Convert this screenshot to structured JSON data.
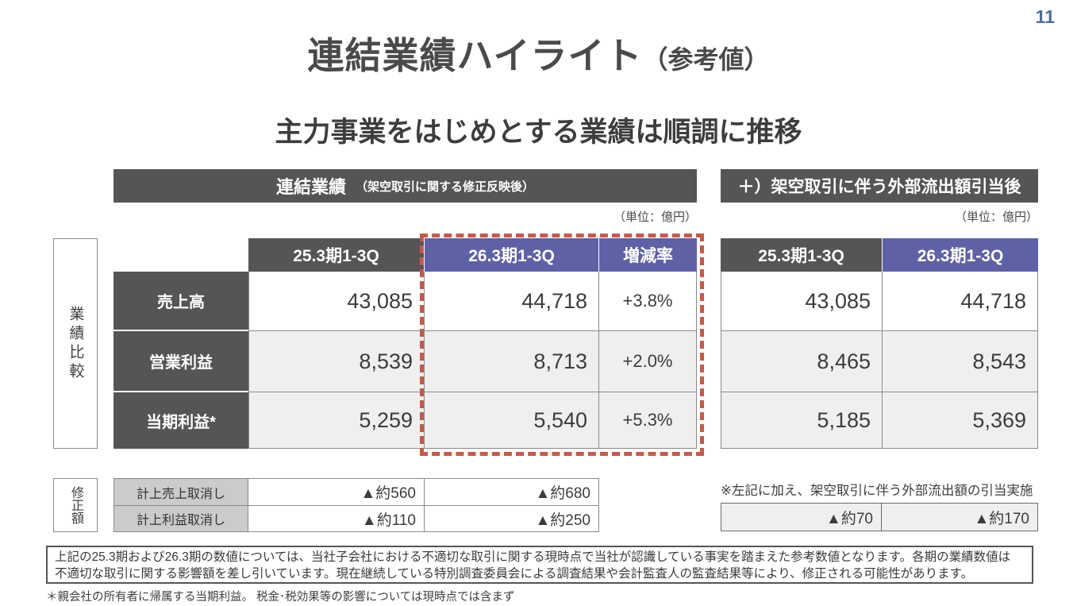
{
  "page": {
    "number": "11"
  },
  "title": {
    "main": "連結業績ハイライト",
    "sub": "（参考値）"
  },
  "subtitle": "主力事業をはじめとする業績は順調に推移",
  "left_panel": {
    "header": "連結業績",
    "header_note": "（架空取引に関する修正反映後）",
    "unit": "（単位：億円）",
    "side_label": "業績比較",
    "columns": [
      "25.3期1-3Q",
      "26.3期1-3Q",
      "増減率"
    ],
    "rows": [
      {
        "label": "売上高",
        "prev": "43,085",
        "curr": "44,718",
        "change": "+3.8%"
      },
      {
        "label": "営業利益",
        "prev": "8,539",
        "curr": "8,713",
        "change": "+2.0%"
      },
      {
        "label": "当期利益*",
        "prev": "5,259",
        "curr": "5,540",
        "change": "+5.3%"
      }
    ]
  },
  "right_panel": {
    "header": "＋）架空取引に伴う外部流出額引当後",
    "unit": "（単位：億円）",
    "columns": [
      "25.3期1-3Q",
      "26.3期1-3Q"
    ],
    "rows": [
      {
        "prev": "43,085",
        "curr": "44,718"
      },
      {
        "prev": "8,465",
        "curr": "8,543"
      },
      {
        "prev": "5,185",
        "curr": "5,369"
      }
    ]
  },
  "adjustments": {
    "side_label": "修正額",
    "rows": [
      {
        "label": "計上売上取消し",
        "prev": "▲約560",
        "curr": "▲約680"
      },
      {
        "label": "計上利益取消し",
        "prev": "▲約110",
        "curr": "▲約250"
      }
    ],
    "right_note": "※左記に加え、架空取引に伴う外部流出額の引当実施",
    "right_values": {
      "prev": "▲約70",
      "curr": "▲約170"
    }
  },
  "notes": {
    "box_line1": "上記の25.3期および26.3期の数値については、当社子会社における不適切な取引に関する現時点で当社が認識している事実を踏まえた参考数値となります。各期の業績数値は",
    "box_line2": "不適切な取引に関する影響額を差し引いています。現在継続している特別調査委員会による調査結果や会計監査人の監査結果等により、修正される可能性があります。",
    "footnote": "＊親会社の所有者に帰属する当期利益。 税金･税効果等の影響については現時点では含まず"
  },
  "colors": {
    "dark_header": "#565456",
    "accent_purple": "#5e61a5",
    "row_alt": "#efefef",
    "label_gray": "#cbcbcb",
    "highlight_red": "#c25b4c",
    "page_number_blue": "#4d6e99"
  }
}
